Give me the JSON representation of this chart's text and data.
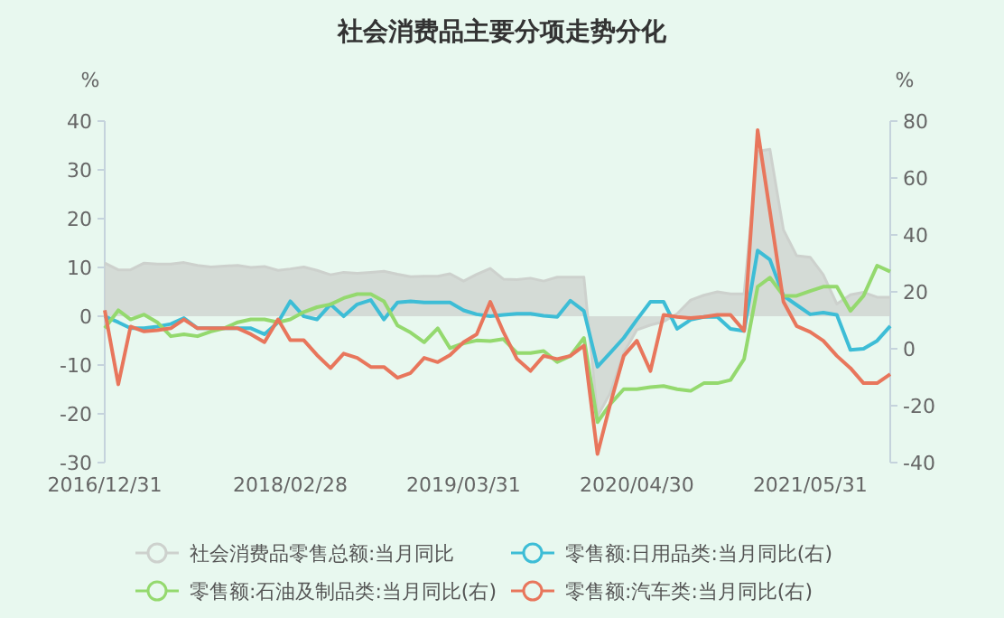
{
  "chart_data": {
    "type": "line",
    "title": "社会消费品主要分项走势分化",
    "ylabel": "%",
    "y2label": "%",
    "x": [
      "2016-12-31",
      "2017-01-31",
      "2017-02-28",
      "2017-03-31",
      "2017-04-30",
      "2017-05-31",
      "2017-06-30",
      "2017-07-31",
      "2017-08-31",
      "2017-09-30",
      "2017-10-31",
      "2017-11-30",
      "2017-12-31",
      "2018-01-31",
      "2018-02-28",
      "2018-03-31",
      "2018-04-30",
      "2018-05-31",
      "2018-06-30",
      "2018-07-31",
      "2018-08-31",
      "2018-09-30",
      "2018-10-31",
      "2018-11-30",
      "2018-12-31",
      "2019-01-31",
      "2019-02-28",
      "2019-03-31",
      "2019-04-30",
      "2019-05-31",
      "2019-06-30",
      "2019-07-31",
      "2019-08-31",
      "2019-09-30",
      "2019-10-31",
      "2019-11-30",
      "2019-12-31",
      "2020-01-31",
      "2020-02-29",
      "2020-03-31",
      "2020-04-30",
      "2020-05-31",
      "2020-06-30",
      "2020-07-31",
      "2020-08-31",
      "2020-09-30",
      "2020-10-31",
      "2020-11-30",
      "2020-12-31",
      "2021-01-31",
      "2021-02-28",
      "2021-03-31",
      "2021-04-30",
      "2021-05-31",
      "2021-06-30",
      "2021-07-31",
      "2021-08-31",
      "2021-09-30",
      "2021-10-31",
      "2021-11-30"
    ],
    "xlim": [
      "2016-12-31",
      "2021-11-30"
    ],
    "xticks": [
      {
        "value": "2016-12-31",
        "label": "2016/12/31"
      },
      {
        "value": "2018-02-28",
        "label": "2018/02/28"
      },
      {
        "value": "2019-03-31",
        "label": "2019/03/31"
      },
      {
        "value": "2020-04-30",
        "label": "2020/04/30"
      },
      {
        "value": "2021-05-31",
        "label": "2021/05/31"
      }
    ],
    "ylim": [
      -30,
      40
    ],
    "yticks": [
      -30,
      -20,
      -10,
      0,
      10,
      20,
      30,
      40
    ],
    "y2lim": [
      -40,
      80
    ],
    "y2ticks": [
      -40,
      -20,
      0,
      20,
      40,
      60,
      80
    ],
    "legend": "bottom",
    "series": [
      {
        "name": "社会消费品零售总额:当月同比",
        "type": "area",
        "color": "#cdd1cd",
        "values": [
          10.9,
          9.5,
          9.5,
          10.9,
          10.7,
          10.7,
          11.0,
          10.4,
          10.1,
          10.3,
          10.4,
          10.0,
          10.2,
          9.4,
          9.7,
          10.1,
          9.4,
          8.5,
          9.0,
          8.8,
          9.0,
          9.2,
          8.6,
          8.1,
          8.2,
          8.2,
          8.7,
          7.2,
          8.6,
          9.8,
          7.6,
          7.5,
          7.8,
          7.2,
          8.0,
          8.0,
          8.0,
          -20.5,
          -15.8,
          -7.5,
          -2.8,
          -1.8,
          -1.1,
          0.5,
          3.3,
          4.3,
          5.0,
          4.6,
          4.6,
          33.8,
          34.2,
          17.7,
          12.4,
          12.1,
          8.5,
          2.5,
          4.4,
          4.9,
          3.9,
          3.9
        ]
      },
      {
        "name": "零售额:日用品类:当月同比(右)",
        "axis": "y2",
        "color": "#3dbdd6",
        "values": [
          11.4,
          9.3,
          7.2,
          7.2,
          7.8,
          8.7,
          10.8,
          7.2,
          null,
          null,
          7.2,
          7.2,
          5.1,
          9.3,
          16.7,
          11.4,
          10.3,
          15.6,
          11.4,
          15.6,
          17.1,
          10.3,
          16.3,
          16.7,
          16.3,
          16.3,
          16.3,
          13.5,
          12.1,
          11.4,
          11.9,
          12.3,
          12.3,
          11.6,
          11.2,
          16.9,
          13.3,
          -6.3,
          -1.5,
          3.8,
          10.2,
          16.5,
          16.5,
          7.0,
          10.2,
          11.2,
          11.2,
          7.0,
          6.3,
          34.5,
          31.3,
          18.6,
          15.4,
          12.1,
          12.7,
          11.9,
          -0.4,
          0,
          2.8,
          8.0
        ]
      },
      {
        "name": "零售额:石油及制品类:当月同比(右)",
        "axis": "y2",
        "color": "#94d96e",
        "values": [
          7.2,
          13.5,
          10.3,
          12.0,
          9.3,
          4.4,
          5.1,
          4.4,
          6.1,
          7.2,
          9.3,
          10.3,
          10.3,
          9.3,
          10.3,
          12.9,
          14.6,
          15.6,
          17.8,
          19.2,
          19.2,
          16.7,
          8.2,
          5.7,
          2.3,
          7.2,
          0.2,
          1.9,
          2.9,
          2.7,
          3.4,
          -1.5,
          -1.5,
          -0.8,
          -4.7,
          -2.5,
          3.8,
          -25.8,
          -19.5,
          -14.2,
          -14.2,
          -13.5,
          -13.1,
          -14.2,
          -14.8,
          -12.1,
          -12.1,
          -11.0,
          -3.6,
          21.8,
          25.0,
          18.6,
          18.6,
          20.3,
          21.8,
          21.8,
          13.3,
          18.6,
          29.2,
          27.1
        ]
      },
      {
        "name": "零售额:汽车类:当月同比(右)",
        "axis": "y2",
        "color": "#e8765c",
        "values": [
          13.5,
          -12.5,
          7.8,
          6.1,
          6.5,
          7.2,
          10.3,
          7.2,
          7.2,
          7.2,
          7.2,
          5.1,
          2.3,
          10.3,
          3.0,
          3.0,
          -2.2,
          -6.8,
          -1.7,
          -3.2,
          -6.4,
          -6.4,
          -10.2,
          -8.5,
          -3.2,
          -4.7,
          -2.2,
          2.3,
          5.1,
          16.5,
          5.9,
          -3.6,
          -7.8,
          -2.5,
          -3.6,
          -2.5,
          1.1,
          -37,
          -19.5,
          -2.5,
          2.8,
          -7.8,
          11.9,
          11.2,
          10.8,
          11.2,
          11.9,
          11.9,
          6.3,
          76.8,
          48.3,
          16.5,
          8.0,
          5.9,
          2.8,
          -2.5,
          -6.8,
          -12.1,
          -12.1,
          -8.9
        ]
      }
    ]
  }
}
